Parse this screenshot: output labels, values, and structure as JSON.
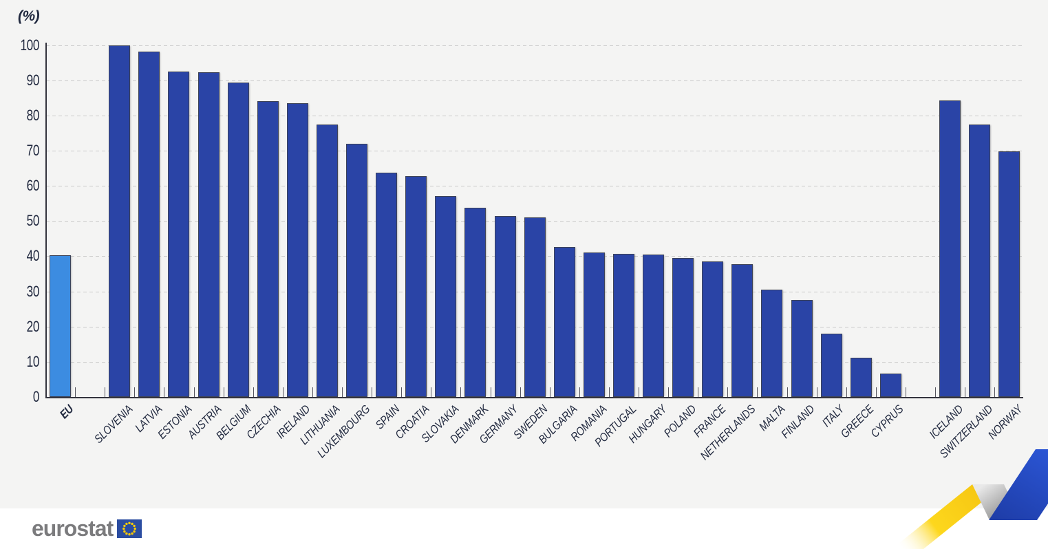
{
  "chart_data": {
    "type": "bar",
    "title": "",
    "unit_label": "(%)",
    "xlabel": "",
    "ylabel": "(%)",
    "ylim": [
      0,
      100
    ],
    "yticks": [
      0,
      10,
      20,
      30,
      40,
      50,
      60,
      70,
      80,
      90,
      100
    ],
    "grid": "horizontal-dashed",
    "legend_position": "none",
    "bars": [
      {
        "label": "EU",
        "value": 40.3,
        "role": "eu_aggregate",
        "gap_before": false
      },
      {
        "label": "SLOVENIA",
        "value": 100.0,
        "role": "member",
        "gap_before": true
      },
      {
        "label": "LATVIA",
        "value": 98.1,
        "role": "member"
      },
      {
        "label": "ESTONIA",
        "value": 92.4,
        "role": "member"
      },
      {
        "label": "AUSTRIA",
        "value": 92.2,
        "role": "member"
      },
      {
        "label": "BELGIUM",
        "value": 89.3,
        "role": "member"
      },
      {
        "label": "CZECHIA",
        "value": 84.1,
        "role": "member"
      },
      {
        "label": "IRELAND",
        "value": 83.4,
        "role": "member"
      },
      {
        "label": "LITHUANIA",
        "value": 77.5,
        "role": "member"
      },
      {
        "label": "LUXEMBOURG",
        "value": 71.9,
        "role": "member"
      },
      {
        "label": "SPAIN",
        "value": 63.7,
        "role": "member"
      },
      {
        "label": "CROATIA",
        "value": 62.7,
        "role": "member"
      },
      {
        "label": "SLOVAKIA",
        "value": 57.0,
        "role": "member"
      },
      {
        "label": "DENMARK",
        "value": 53.7,
        "role": "member"
      },
      {
        "label": "GERMANY",
        "value": 51.5,
        "role": "member"
      },
      {
        "label": "SWEDEN",
        "value": 51.1,
        "role": "member"
      },
      {
        "label": "BULGARIA",
        "value": 42.6,
        "role": "member"
      },
      {
        "label": "ROMANIA",
        "value": 41.0,
        "role": "member"
      },
      {
        "label": "PORTUGAL",
        "value": 40.7,
        "role": "member"
      },
      {
        "label": "HUNGARY",
        "value": 40.4,
        "role": "member"
      },
      {
        "label": "POLAND",
        "value": 39.5,
        "role": "member"
      },
      {
        "label": "FRANCE",
        "value": 38.5,
        "role": "member"
      },
      {
        "label": "NETHERLANDS",
        "value": 37.7,
        "role": "member"
      },
      {
        "label": "MALTA",
        "value": 30.5,
        "role": "member"
      },
      {
        "label": "FINLAND",
        "value": 27.5,
        "role": "member"
      },
      {
        "label": "ITALY",
        "value": 17.9,
        "role": "member"
      },
      {
        "label": "GREECE",
        "value": 11.2,
        "role": "member"
      },
      {
        "label": "CYPRUS",
        "value": 6.7,
        "role": "member"
      },
      {
        "label": "ICELAND",
        "value": 84.3,
        "role": "efta",
        "gap_before": true
      },
      {
        "label": "SWITZERLAND",
        "value": 77.5,
        "role": "efta"
      },
      {
        "label": "NORWAY",
        "value": 69.8,
        "role": "efta"
      }
    ]
  },
  "footer": {
    "logo_text": "eurostat"
  },
  "colors": {
    "eu_bar": "#3c8ce1",
    "country_bar": "#2a44a6",
    "bar_border": "#3d4357",
    "plot_background": "#f4f4f3",
    "page_background": "#ffffff",
    "gridline": "#c9c9c9",
    "axis": "#33333d",
    "text": "#21293f",
    "logo_gray": "#7b7b7d",
    "eu_flag_blue": "#2b4da1",
    "eu_flag_stars": "#ffcc00",
    "ribbon_yellow": "#fdd21a",
    "ribbon_gray": "#9c9c9c",
    "ribbon_blue": "#2148c8"
  }
}
